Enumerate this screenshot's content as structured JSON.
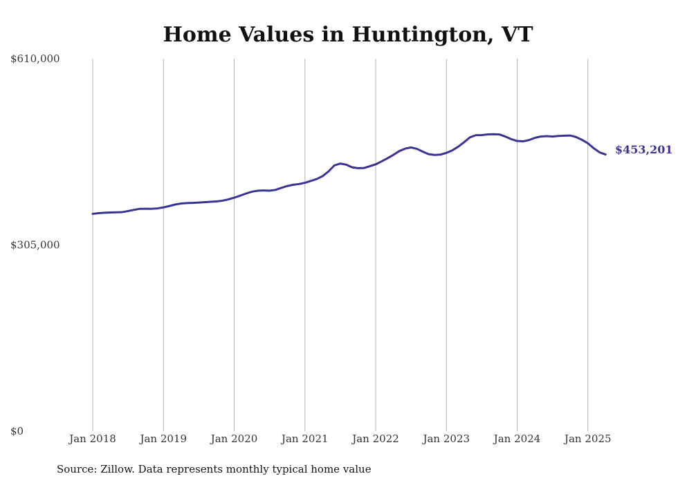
{
  "chart_data": {
    "type": "line",
    "title": "Home Values in Huntington, VT",
    "source": "Source: Zillow. Data represents monthly typical home value",
    "line_color": "#3a3396",
    "ylim": [
      0,
      610000
    ],
    "y_ticks": [
      {
        "value": 0,
        "label": "$0"
      },
      {
        "value": 305000,
        "label": "$305,000"
      },
      {
        "value": 610000,
        "label": "$610,000"
      }
    ],
    "x_ticks": [
      {
        "value": "2018-01",
        "label": "Jan 2018"
      },
      {
        "value": "2019-01",
        "label": "Jan 2019"
      },
      {
        "value": "2020-01",
        "label": "Jan 2020"
      },
      {
        "value": "2021-01",
        "label": "Jan 2021"
      },
      {
        "value": "2022-01",
        "label": "Jan 2022"
      },
      {
        "value": "2023-01",
        "label": "Jan 2023"
      },
      {
        "value": "2024-01",
        "label": "Jan 2024"
      },
      {
        "value": "2025-01",
        "label": "Jan 2025"
      }
    ],
    "grid": {
      "vertical": true,
      "horizontal": false
    },
    "end_label": "$453,201",
    "series": [
      {
        "x": [
          "2018-01",
          "2018-02",
          "2018-03",
          "2018-04",
          "2018-05",
          "2018-06",
          "2018-07",
          "2018-08",
          "2018-09",
          "2018-10",
          "2018-11",
          "2018-12",
          "2019-01",
          "2019-02",
          "2019-03",
          "2019-04",
          "2019-05",
          "2019-06",
          "2019-07",
          "2019-08",
          "2019-09",
          "2019-10",
          "2019-11",
          "2019-12",
          "2020-01",
          "2020-02",
          "2020-03",
          "2020-04",
          "2020-05",
          "2020-06",
          "2020-07",
          "2020-08",
          "2020-09",
          "2020-10",
          "2020-11",
          "2020-12",
          "2021-01",
          "2021-02",
          "2021-03",
          "2021-04",
          "2021-05",
          "2021-06",
          "2021-07",
          "2021-08",
          "2021-09",
          "2021-10",
          "2021-11",
          "2021-12",
          "2022-01",
          "2022-02",
          "2022-03",
          "2022-04",
          "2022-05",
          "2022-06",
          "2022-07",
          "2022-08",
          "2022-09",
          "2022-10",
          "2022-11",
          "2022-12",
          "2023-01",
          "2023-02",
          "2023-03",
          "2023-04",
          "2023-05",
          "2023-06",
          "2023-07",
          "2023-08",
          "2023-09",
          "2023-10",
          "2023-11",
          "2023-12",
          "2024-01",
          "2024-02",
          "2024-03",
          "2024-04",
          "2024-05",
          "2024-06",
          "2024-07",
          "2024-08",
          "2024-09",
          "2024-10",
          "2024-11",
          "2024-12",
          "2025-01",
          "2025-02",
          "2025-03",
          "2025-04"
        ],
        "values": [
          356000,
          357000,
          357800,
          358200,
          358500,
          358800,
          360500,
          362500,
          364200,
          364300,
          364200,
          364900,
          366500,
          368800,
          371200,
          372900,
          373600,
          373900,
          374400,
          375000,
          375700,
          376300,
          377500,
          379600,
          382400,
          385700,
          389200,
          392200,
          393800,
          394200,
          393800,
          395200,
          398500,
          401500,
          403600,
          404800,
          406800,
          409900,
          413000,
          417700,
          425400,
          435300,
          438300,
          436600,
          432200,
          430800,
          431000,
          433900,
          437000,
          441900,
          447000,
          452500,
          458700,
          462800,
          464700,
          462400,
          457800,
          453700,
          452400,
          453000,
          455800,
          459900,
          465900,
          473300,
          481300,
          484800,
          485000,
          486100,
          486400,
          486000,
          482500,
          478300,
          475300,
          474700,
          476700,
          480400,
          482600,
          483200,
          482600,
          483500,
          484000,
          484300,
          481700,
          477200,
          471500,
          463300,
          456600,
          453201
        ]
      }
    ]
  }
}
